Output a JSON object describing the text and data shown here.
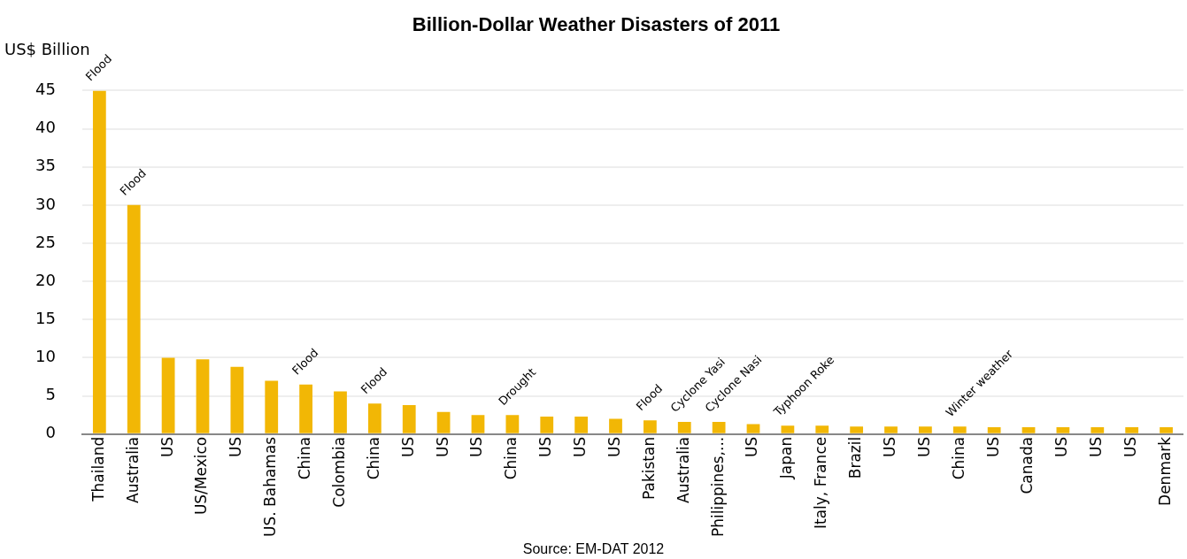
{
  "chart_data": {
    "type": "bar",
    "title": "Billion-Dollar Weather Disasters of 2011",
    "ylabel": "US$ Billion",
    "categories": [
      "Thailand",
      "Australia",
      "US",
      "US/Mexico",
      "US",
      "US. Bahamas",
      "China",
      "Colombia",
      "China",
      "US",
      "US",
      "US",
      "China",
      "US",
      "US",
      "US",
      "Pakistan",
      "Australia",
      "Philippines,...",
      "US",
      "Japan",
      "Italy, France",
      "Brazil",
      "US",
      "US",
      "China",
      "US",
      "Canada",
      "US",
      "US",
      "US",
      "Denmark"
    ],
    "values": [
      45,
      30,
      10,
      9.8,
      8.8,
      7,
      6.5,
      5.6,
      4,
      3.8,
      2.9,
      2.5,
      2.5,
      2.3,
      2.3,
      2,
      1.8,
      1.6,
      1.6,
      1.3,
      1.1,
      1.1,
      1,
      1,
      1,
      1,
      0.9,
      0.9,
      0.9,
      0.9,
      0.9,
      0.9
    ],
    "color": "#f2b705",
    "ylim": [
      0,
      45
    ],
    "yticks": [
      0,
      5,
      10,
      15,
      20,
      25,
      30,
      35,
      40,
      45
    ],
    "grid": "y",
    "legend": false,
    "annotations": [
      {
        "text": "Flood",
        "x": "Thailand",
        "y": 45
      },
      {
        "text": "Flood",
        "x": "Australia",
        "y": 30
      },
      {
        "text": "Flood",
        "x": "China",
        "y": 6.5
      },
      "Flood",
      "Drought",
      {
        "text": "Flood",
        "x": "Pakistan",
        "y": 1.8
      },
      "Cyclone Yasi",
      {
        "text": "Cyclone Nasi",
        "x": "Philippines,...",
        "y": 1.6
      },
      {
        "text": "Typhoon Roke",
        "x": "Japan",
        "y": 1.1
      },
      "Winter weather",
      "Source: EM-DAT 2012"
    ]
  }
}
